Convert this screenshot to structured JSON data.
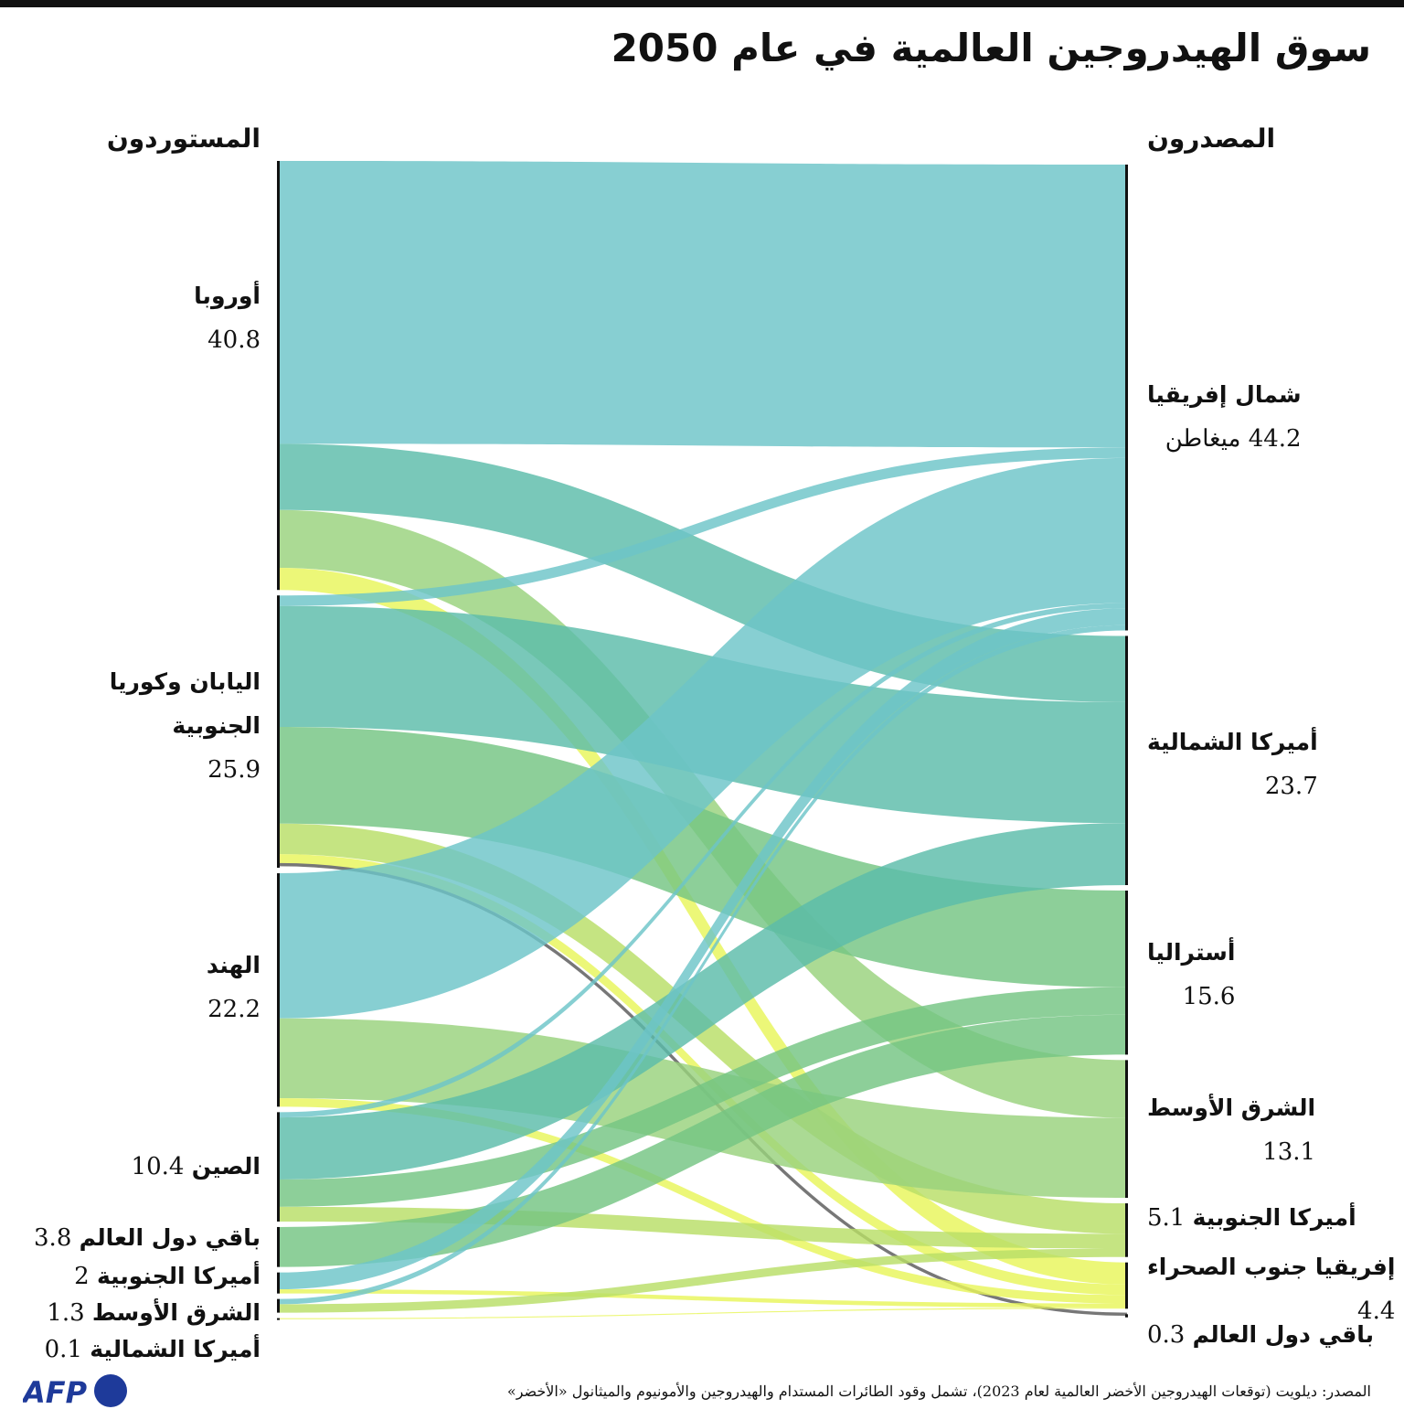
{
  "title": "سوق الهيدروجين العالمية في عام 2050",
  "importers_header": "المستوردون",
  "exporters_header": "المصدرون",
  "importers": [
    {
      "id": "eu",
      "name": "أوروبا",
      "value_label": "40.8",
      "value": 40.8
    },
    {
      "id": "jk",
      "name": "اليابان وكوريا الجنوبية",
      "value_label": "25.9",
      "value": 25.9
    },
    {
      "id": "in",
      "name": "الهند",
      "value_label": "22.2",
      "value": 22.2
    },
    {
      "id": "cn",
      "name": "الصين",
      "value_label": "10.4",
      "value": 10.4
    },
    {
      "id": "row",
      "name": "باقي دول العالم",
      "value_label": "3.8",
      "value": 3.8
    },
    {
      "id": "sa",
      "name": "أميركا الجنوبية",
      "value_label": "2",
      "value": 2
    },
    {
      "id": "me",
      "name": "الشرق الأوسط",
      "value_label": "1.3",
      "value": 1.3
    },
    {
      "id": "na",
      "name": "أميركا الشمالية",
      "value_label": "0.1",
      "value": 0.1
    }
  ],
  "exporters": [
    {
      "id": "naf",
      "name": "شمال إفريقيا",
      "value_label": "44.2 ميغاطن",
      "value": 44.2,
      "color": "#6cc5c8"
    },
    {
      "id": "nam",
      "name": "أميركا الشمالية",
      "value_label": "23.7",
      "value": 23.7,
      "color": "#5bbcaa"
    },
    {
      "id": "aus",
      "name": "أستراليا",
      "value_label": "15.6",
      "value": 15.6,
      "color": "#74c483"
    },
    {
      "id": "mde",
      "name": "الشرق الأوسط",
      "value_label": "13.1",
      "value": 13.1,
      "color": "#98d27c"
    },
    {
      "id": "sam",
      "name": "أميركا الجنوبية",
      "value_label": "5.1",
      "value": 5.1,
      "color": "#b8de66"
    },
    {
      "id": "ssa",
      "name": "إفريقيا جنوب الصحراء",
      "value_label": "4.4",
      "value": 4.4,
      "color": "#e8f55a"
    },
    {
      "id": "rw",
      "name": "باقي دول العالم",
      "value_label": "0.3",
      "value": 0.3,
      "color": "#888888"
    }
  ],
  "unit": "ميغاطن",
  "chart_data": {
    "type": "sankey",
    "flows": [
      [
        "eu",
        "naf",
        26.9
      ],
      [
        "eu",
        "nam",
        6.3
      ],
      [
        "eu",
        "mde",
        5.5
      ],
      [
        "eu",
        "ssa",
        2.1
      ],
      [
        "jk",
        "naf",
        1.0
      ],
      [
        "jk",
        "nam",
        11.5
      ],
      [
        "jk",
        "aus",
        9.2
      ],
      [
        "jk",
        "sam",
        2.9
      ],
      [
        "jk",
        "ssa",
        1.0
      ],
      [
        "jk",
        "rw",
        0.3
      ],
      [
        "in",
        "naf",
        13.8
      ],
      [
        "in",
        "mde",
        7.6
      ],
      [
        "in",
        "ssa",
        0.8
      ],
      [
        "cn",
        "naf",
        0.5
      ],
      [
        "cn",
        "nam",
        5.9
      ],
      [
        "cn",
        "aus",
        2.6
      ],
      [
        "cn",
        "sam",
        1.4
      ],
      [
        "row",
        "aus",
        3.8
      ],
      [
        "sa",
        "naf",
        1.6
      ],
      [
        "sa",
        "ssa",
        0.4
      ],
      [
        "me",
        "naf",
        0.5
      ],
      [
        "me",
        "sam",
        0.8
      ],
      [
        "na",
        "ssa",
        0.1
      ]
    ]
  },
  "footer": "المصدر: ديلويت (توقعات الهيدروجين الأخضر العالمية لعام 2023)، تشمل وقود الطائرات المستدام والهيدروجين والأمونيوم والميثانول «الأخضر»",
  "logo_text": "AFP"
}
